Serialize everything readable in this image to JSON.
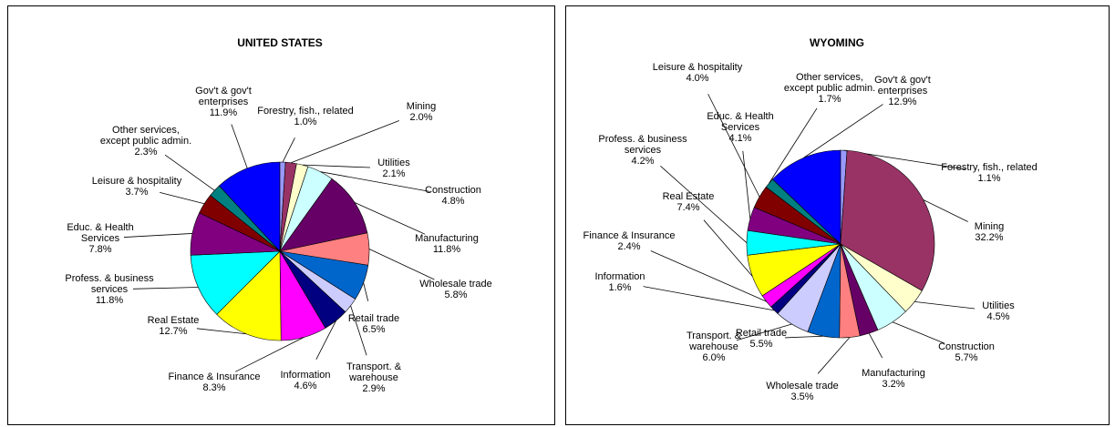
{
  "chart_data": [
    {
      "type": "pie",
      "title": "UNITED STATES",
      "categories": [
        "Gov't & gov't\nenterprises",
        "Forestry, fish., related",
        "Mining",
        "Utilities",
        "Construction",
        "Manufacturing",
        "Wholesale trade",
        "Retail trade",
        "Transport. &\nwarehouse",
        "Information",
        "Finance & Insurance",
        "Real Estate",
        "Profess. & business\nservices",
        "Educ. & Health\nServices",
        "Leisure & hospitality",
        "Other services,\nexcept public admin."
      ],
      "values": [
        11.9,
        1.0,
        2.0,
        2.1,
        4.8,
        11.8,
        5.8,
        6.5,
        2.9,
        4.6,
        8.3,
        12.7,
        11.8,
        7.8,
        3.7,
        2.3
      ],
      "value_labels": [
        "11.9%",
        "1.0%",
        "2.0%",
        "2.1%",
        "4.8%",
        "11.8%",
        "5.8%",
        "6.5%",
        "2.9%",
        "4.6%",
        "8.3%",
        "12.7%",
        "11.8%",
        "7.8%",
        "3.7%",
        "2.3%"
      ],
      "colors": [
        "#0000FF",
        "#9999FF",
        "#993366",
        "#FFFFCC",
        "#CCFFFF",
        "#660066",
        "#FF8080",
        "#0066CC",
        "#CCCCFF",
        "#000080",
        "#FF00FF",
        "#FFFF00",
        "#00FFFF",
        "#800080",
        "#800000",
        "#008080"
      ]
    },
    {
      "type": "pie",
      "title": "WYOMING",
      "categories": [
        "Gov't & gov't\nenterprises",
        "Forestry, fish., related",
        "Mining",
        "Utilities",
        "Construction",
        "Manufacturing",
        "Wholesale trade",
        "Retail trade",
        "Transport. &\nwarehouse",
        "Information",
        "Finance & Insurance",
        "Real Estate",
        "Profess. & business\nservices",
        "Educ. & Health\nServices",
        "Leisure & hospitality",
        "Other services,\nexcept public admin."
      ],
      "values": [
        12.9,
        1.1,
        32.2,
        4.5,
        5.7,
        3.2,
        3.5,
        5.5,
        6.0,
        1.6,
        2.4,
        7.4,
        4.2,
        4.1,
        4.0,
        1.7
      ],
      "value_labels": [
        "12.9%",
        "1.1%",
        "32.2%",
        "4.5%",
        "5.7%",
        "3.2%",
        "3.5%",
        "5.5%",
        "6.0%",
        "1.6%",
        "2.4%",
        "7.4%",
        "4.2%",
        "4.1%",
        "4.0%",
        "1.7%"
      ],
      "colors": [
        "#0000FF",
        "#9999FF",
        "#993366",
        "#FFFFCC",
        "#CCFFFF",
        "#660066",
        "#FF8080",
        "#0066CC",
        "#CCCCFF",
        "#000080",
        "#FF00FF",
        "#FFFF00",
        "#00FFFF",
        "#800080",
        "#800000",
        "#008080"
      ]
    }
  ]
}
